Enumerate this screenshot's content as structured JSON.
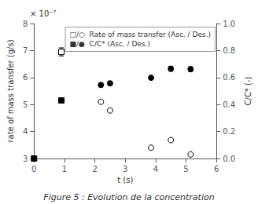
{
  "chart_data": {
    "type": "scatter",
    "xlabel": "t (s)",
    "ylabel": "rate of mass transfer (g/s)",
    "y2label": "C/C* (-)",
    "xlim": [
      0,
      6
    ],
    "xticks": [
      0,
      1,
      2,
      3,
      4,
      5,
      6
    ],
    "ylim": [
      3e-07,
      8e-07
    ],
    "yticks": [
      {
        "value": 3e-07,
        "label": "3"
      },
      {
        "value": 4e-07,
        "label": "4"
      },
      {
        "value": 5e-07,
        "label": "5"
      },
      {
        "value": 6e-07,
        "label": "6"
      },
      {
        "value": 7e-07,
        "label": "7"
      },
      {
        "value": 8e-07,
        "label": "8"
      }
    ],
    "y2lim": [
      0,
      1
    ],
    "y2ticks": [
      {
        "value": 0,
        "label": "0.0"
      },
      0.2,
      0.4,
      0.6,
      0.8,
      {
        "value": 1.0,
        "label": "1.0"
      }
    ],
    "grid": false,
    "annotations": [
      "× 10⁻⁷"
    ],
    "caption": "Figure 5 : Evolution de la concentration",
    "legend": "upper right",
    "legend_entries": [
      "□/○  Rate of mass transfer (Asc. / Des.)",
      "■/●  C/C* (Asc. / Des.)"
    ],
    "series": [
      {
        "marker": "open_square",
        "color": "black",
        "x": [
          0.9
        ],
        "values": [
          6.95e-07
        ],
        "errors": [
          1.5e-08
        ]
      },
      {
        "marker": "open_circle",
        "color": "black",
        "x": [
          2.2,
          2.5,
          3.85,
          4.5,
          5.15
        ],
        "values": [
          5.1e-07,
          4.78e-07,
          3.4e-07,
          3.68e-07,
          3.15e-07
        ],
        "errors": [
          5e-09,
          5e-09,
          0.0,
          0.0,
          0.0
        ]
      },
      {
        "marker": "square",
        "color": "black",
        "axis": "y2",
        "x": [
          0.0,
          0.9
        ],
        "values": [
          0.0,
          0.43
        ],
        "errors": [
          0.0,
          0.0
        ]
      },
      {
        "marker": "circle",
        "color": "black",
        "axis": "y2",
        "x": [
          2.2,
          2.5,
          3.85,
          4.5,
          5.15
        ],
        "values": [
          0.545,
          0.557,
          0.598,
          0.665,
          0.662
        ],
        "errors": [
          0.015,
          0.015,
          0.0,
          0.018,
          0.018
        ]
      }
    ]
  }
}
